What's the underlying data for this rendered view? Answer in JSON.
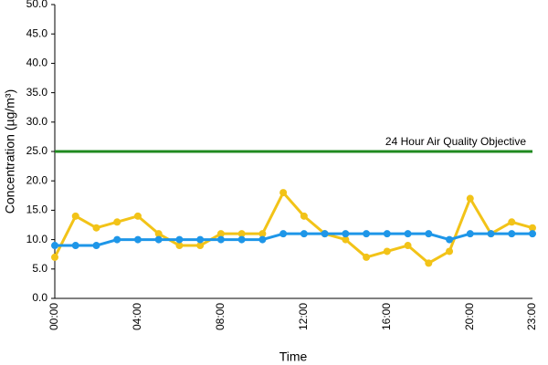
{
  "chart_data": {
    "type": "line",
    "y_label": "Concentration (µg/m³)",
    "x_label": "Time",
    "categories": [
      "00:00",
      null,
      null,
      null,
      "04:00",
      null,
      null,
      null,
      "08:00",
      null,
      null,
      null,
      "12:00",
      null,
      null,
      null,
      "16:00",
      null,
      null,
      null,
      "20:00",
      null,
      null,
      "23:00"
    ],
    "series": [
      {
        "color": "#f2c318",
        "values": [
          7,
          14,
          12,
          13,
          14,
          11,
          9,
          9,
          11,
          11,
          11,
          18,
          14,
          11,
          10,
          7,
          8,
          9,
          6,
          8,
          17,
          11,
          13,
          12
        ]
      },
      {
        "color": "#1e96e8",
        "values": [
          9,
          9,
          9,
          10,
          10,
          10,
          10,
          10,
          10,
          10,
          10,
          11,
          11,
          11,
          11,
          11,
          11,
          11,
          11,
          10,
          11,
          11,
          11,
          11
        ]
      }
    ],
    "reference_line": {
      "value": 25,
      "label": "24 Hour Air Quality Objective",
      "color": "#1f8a1f"
    },
    "ylim": [
      0,
      50
    ],
    "yticks": [
      {
        "value": 0,
        "label": "0.0"
      },
      {
        "value": 5,
        "label": "5.0"
      },
      {
        "value": 10,
        "label": "10.0"
      },
      {
        "value": 15,
        "label": "15.0"
      },
      {
        "value": 20,
        "label": "20.0"
      },
      {
        "value": 25,
        "label": "25.0"
      },
      {
        "value": 30,
        "label": "30.0"
      },
      {
        "value": 35,
        "label": "35.0"
      },
      {
        "value": 40,
        "label": "40.0"
      },
      {
        "value": 45,
        "label": "45.0"
      },
      {
        "value": 50,
        "label": "50.0"
      }
    ],
    "grid": false
  }
}
